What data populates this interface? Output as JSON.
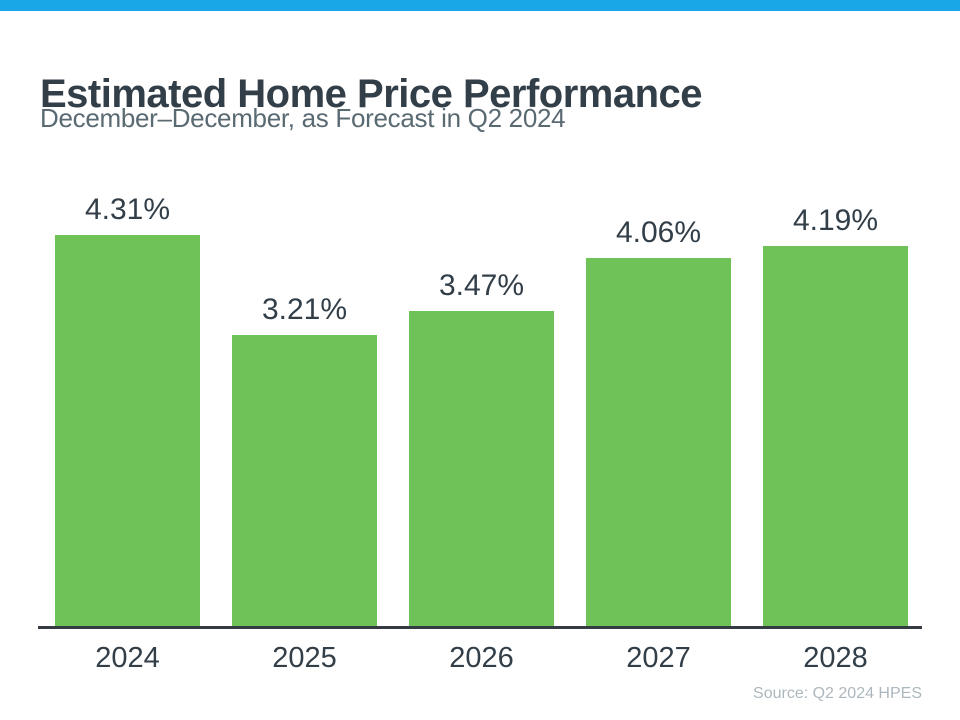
{
  "accent": {
    "top_bar_color": "#1AA7E8",
    "bar_color": "#6FC257",
    "axis_color": "#343B43",
    "title_color": "#323E48",
    "subtitle_color": "#5A6A72",
    "source_color": "#ACB8BE"
  },
  "header": {
    "title": "Estimated Home Price Performance",
    "subtitle": "December–December, as Forecast in Q2 2024"
  },
  "footer": {
    "source": "Source: Q2 2024 HPES"
  },
  "chart_data": {
    "type": "bar",
    "title": "Estimated Home Price Performance",
    "subtitle": "December–December, as Forecast in Q2 2024",
    "categories": [
      "2024",
      "2025",
      "2026",
      "2027",
      "2028"
    ],
    "values": [
      4.31,
      3.21,
      3.47,
      4.06,
      4.19
    ],
    "value_labels": [
      "4.31%",
      "3.21%",
      "3.47%",
      "4.06%",
      "4.19%"
    ],
    "unit": "%",
    "xlabel": "",
    "ylabel": "",
    "ylim": [
      0,
      4.8
    ],
    "grid": false,
    "legend": false,
    "bar_color": "#6FC257",
    "source": "Source: Q2 2024 HPES"
  }
}
